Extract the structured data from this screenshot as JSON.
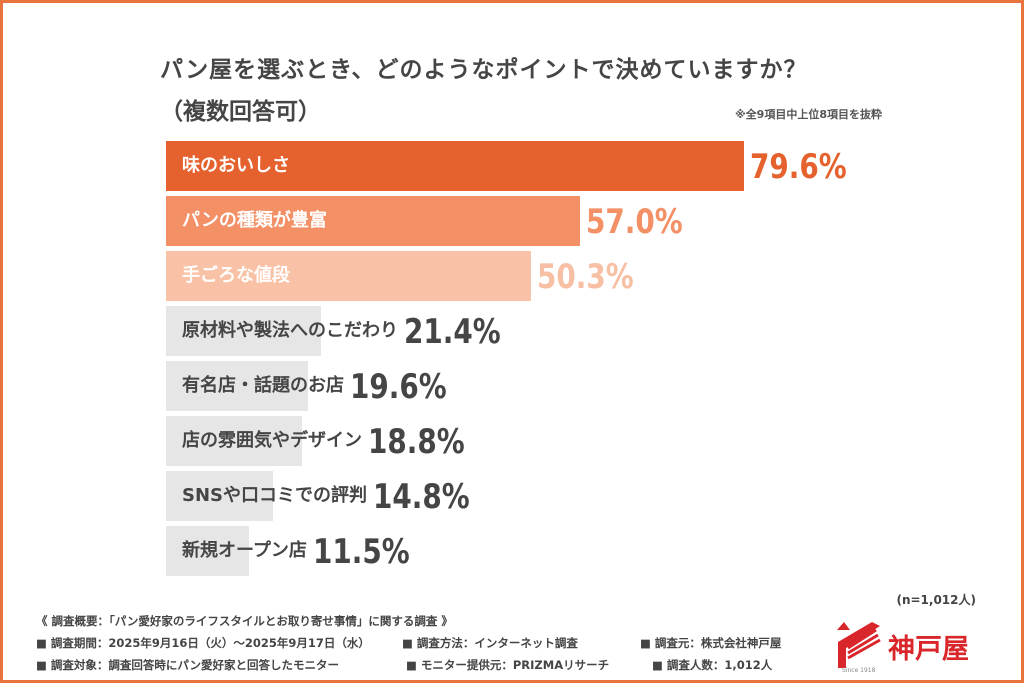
{
  "title": "パン屋を選ぶとき、どのようなポイントで決めていますか？",
  "subtitle": "（複数回答可）",
  "note": "※全9項目中上位8項目を抜粋",
  "sample": "(n=1,012人)",
  "chart_data": {
    "type": "bar",
    "orientation": "horizontal",
    "unit": "%",
    "categories": [
      "味のおいしさ",
      "パンの種類が豊富",
      "手ごろな値段",
      "原材料や製法へのこだわり",
      "有名店・話題のお店",
      "店の雰囲気やデザイン",
      "SNSや口コミでの評判",
      "新規オープン店"
    ],
    "values": [
      79.6,
      57.0,
      50.3,
      21.4,
      19.6,
      18.8,
      14.8,
      11.5
    ],
    "labels": [
      "79.6%",
      "57.0%",
      "50.3%",
      "21.4%",
      "19.6%",
      "18.8%",
      "14.8%",
      "11.5%"
    ],
    "colors": [
      "#e5622f",
      "#f39066",
      "#f9c2a6",
      "#e6e6e6",
      "#e6e6e6",
      "#e6e6e6",
      "#e6e6e6",
      "#e6e6e6"
    ],
    "label_colors": [
      "#e5622f",
      "#f39066",
      "#f7bfa3",
      "#454545",
      "#454545",
      "#454545",
      "#454545",
      "#454545"
    ],
    "text_colors": [
      "#ffffff",
      "#ffffff",
      "#ffffff",
      "#454545",
      "#454545",
      "#454545",
      "#454545",
      "#454545"
    ]
  },
  "footer": {
    "overview": "《 調査概要：「パン愛好家のライフスタイルとお取り寄せ事情」に関する調査 》",
    "period": "■ 調査期間：2025年9月16日（火）～2025年9月17日（水）",
    "method": "■ 調査方法：インターネット調査",
    "source": "■ 調査元：株式会社神戸屋",
    "target": "■ 調査対象：調査回答時にパン愛好家と回答したモニター",
    "provider": "■ モニター提供元：PRIZMAリサーチ",
    "count": "■ 調査人数：1,012人"
  },
  "logo": {
    "name": "神戸屋",
    "since": "Since 1918",
    "color": "#d9262b"
  }
}
